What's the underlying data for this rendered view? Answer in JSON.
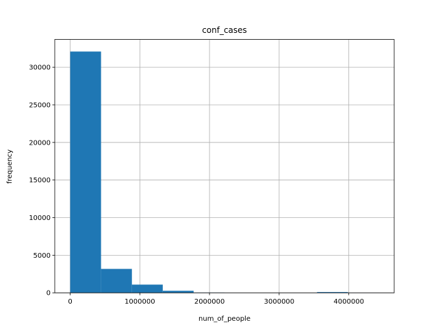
{
  "chart_data": {
    "type": "histogram",
    "title": "conf_cases",
    "x_label": "num_of_people",
    "y_label": "frequency",
    "bins": [
      0,
      443000,
      886000,
      1329000,
      1772000,
      2215000,
      2658000,
      3101000,
      3544000,
      3987000,
      4430000
    ],
    "counts": [
      32090,
      3180,
      1090,
      270,
      30,
      10,
      5,
      10,
      100,
      20
    ],
    "color": "#1f77b4",
    "xlim": [
      -221500,
      4651500
    ],
    "xticks": [
      0,
      1000000,
      2000000,
      3000000,
      4000000
    ],
    "ylim": [
      0,
      33695
    ],
    "yticks": [
      0,
      5000,
      10000,
      15000,
      20000,
      25000,
      30000
    ],
    "grid": true
  }
}
